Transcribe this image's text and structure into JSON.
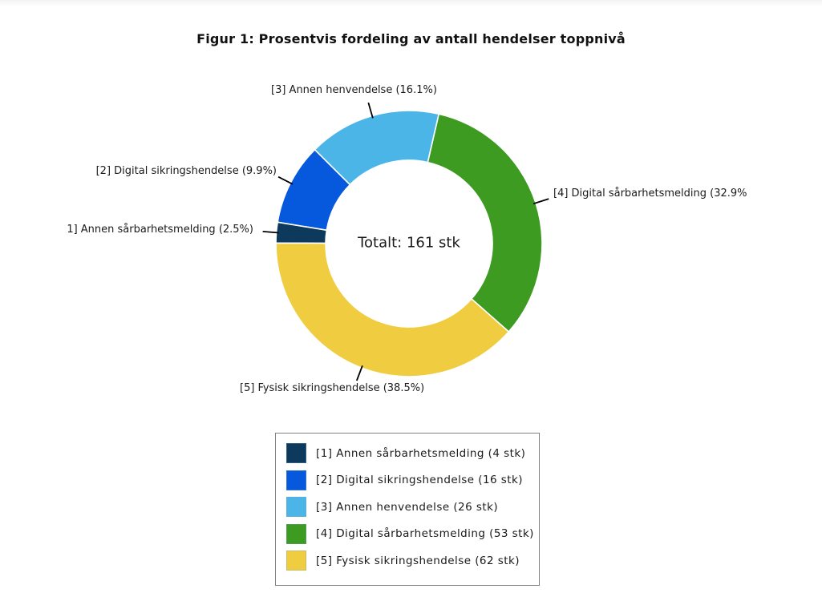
{
  "title": "Figur 1: Prosentvis fordeling av antall hendelser toppnivå",
  "chart_data": {
    "type": "pie",
    "subtype": "donut",
    "title": "Figur 1: Prosentvis fordeling av antall hendelser toppnivå",
    "center_label": "Totalt: 161 stk",
    "total_count": 161,
    "unit": "stk",
    "legend_position": "bottom",
    "direction": "counterclockwise",
    "start_angle_deg": -41.5,
    "draw_order": [
      4,
      3,
      2,
      1,
      5
    ],
    "slices": [
      {
        "id": 1,
        "name": "Annen sårbarhetsmelding",
        "count": 4,
        "percent": 2.5,
        "color": "#0d3a5c",
        "callout_label": "1] Annen sårbarhetsmelding (2.5%)",
        "legend_label": "[1] Annen sårbarhetsmelding (4 stk)"
      },
      {
        "id": 2,
        "name": "Digital sikringshendelse",
        "count": 16,
        "percent": 9.9,
        "color": "#0659dd",
        "callout_label": "[2] Digital sikringshendelse (9.9%)",
        "legend_label": "[2] Digital sikringshendelse (16 stk)"
      },
      {
        "id": 3,
        "name": "Annen henvendelse",
        "count": 26,
        "percent": 16.1,
        "color": "#4cb5e8",
        "callout_label": "[3] Annen henvendelse (16.1%)",
        "legend_label": "[3] Annen henvendelse (26 stk)"
      },
      {
        "id": 4,
        "name": "Digital sårbarhetsmelding",
        "count": 53,
        "percent": 32.9,
        "color": "#3d9b21",
        "callout_label": "[4] Digital sårbarhetsmelding (32.9%",
        "legend_label": "[4] Digital sårbarhetsmelding (53 stk)"
      },
      {
        "id": 5,
        "name": "Fysisk sikringshendelse",
        "count": 62,
        "percent": 38.5,
        "color": "#f0cd40",
        "callout_label": "[5] Fysisk sikringshendelse (38.5%)",
        "legend_label": "[5] Fysisk sikringshendelse (62 stk)"
      }
    ]
  }
}
